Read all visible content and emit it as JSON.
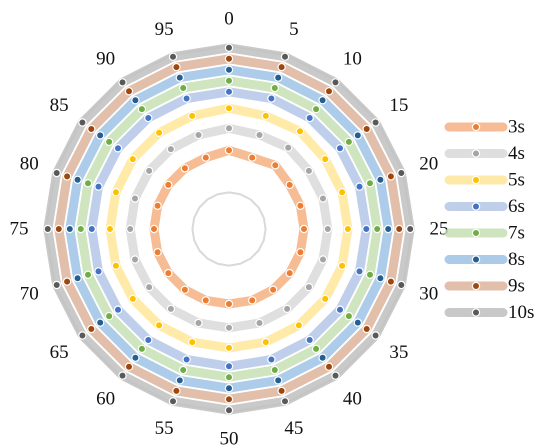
{
  "chart_data": {
    "type": "radar",
    "title": "",
    "categories": [
      "0",
      "5",
      "10",
      "15",
      "20",
      "25",
      "30",
      "35",
      "40",
      "45",
      "50",
      "55",
      "60",
      "65",
      "70",
      "75",
      "80",
      "85",
      "90",
      "95"
    ],
    "rlim": [
      0,
      10
    ],
    "grid": true,
    "grid_rings": [
      2
    ],
    "legend_position": "right",
    "series": [
      {
        "name": "3s",
        "values": [
          4.3,
          4.1,
          4.3,
          4.1,
          4.1,
          4.1,
          4.1,
          4.1,
          4.1,
          4.1,
          4.1,
          4.1,
          4.1,
          4.1,
          4.1,
          4.1,
          4.1,
          4.1,
          4.1,
          4.1
        ],
        "color": "#f4b183",
        "marker": "#ed7d31"
      },
      {
        "name": "4s",
        "values": [
          5.5,
          5.4,
          5.5,
          5.4,
          5.4,
          5.4,
          5.4,
          5.4,
          5.4,
          5.4,
          5.4,
          5.4,
          5.4,
          5.4,
          5.4,
          5.4,
          5.4,
          5.4,
          5.4,
          5.4
        ],
        "color": "#d9d9d9",
        "marker": "#a5a5a5"
      },
      {
        "name": "5s",
        "values": [
          6.6,
          6.5,
          6.6,
          6.5,
          6.5,
          6.5,
          6.5,
          6.5,
          6.5,
          6.5,
          6.5,
          6.5,
          6.5,
          6.5,
          6.5,
          6.5,
          6.5,
          6.5,
          6.5,
          6.5
        ],
        "color": "#ffe699",
        "marker": "#ffc000"
      },
      {
        "name": "6s",
        "values": [
          7.5,
          7.5,
          7.5,
          7.5,
          7.5,
          7.5,
          7.5,
          7.5,
          7.5,
          7.5,
          7.5,
          7.5,
          7.5,
          7.5,
          7.5,
          7.5,
          7.5,
          7.5,
          7.5,
          7.5
        ],
        "color": "#b4c7e7",
        "marker": "#4472c4"
      },
      {
        "name": "7s",
        "values": [
          8.1,
          8.1,
          8.1,
          8.1,
          8.1,
          8.1,
          8.1,
          8.1,
          8.1,
          8.1,
          8.1,
          8.1,
          8.1,
          8.1,
          8.1,
          8.1,
          8.1,
          8.1,
          8.1,
          8.1
        ],
        "color": "#c5e0b4",
        "marker": "#70ad47"
      },
      {
        "name": "8s",
        "values": [
          8.7,
          8.7,
          8.7,
          8.7,
          8.7,
          8.7,
          8.7,
          8.7,
          8.7,
          8.7,
          8.7,
          8.7,
          8.7,
          8.7,
          8.7,
          8.7,
          8.7,
          8.7,
          8.7,
          8.7
        ],
        "color": "#9dc3e6",
        "marker": "#255e91"
      },
      {
        "name": "9s",
        "values": [
          9.3,
          9.3,
          9.3,
          9.3,
          9.3,
          9.3,
          9.3,
          9.3,
          9.3,
          9.3,
          9.3,
          9.3,
          9.3,
          9.3,
          9.3,
          9.3,
          9.3,
          9.3,
          9.3,
          9.3
        ],
        "color": "#dcb49c",
        "marker": "#9e480e"
      },
      {
        "name": "10s",
        "values": [
          9.9,
          9.9,
          9.9,
          9.9,
          9.9,
          9.9,
          9.9,
          9.9,
          9.9,
          9.9,
          9.9,
          9.9,
          9.9,
          9.9,
          9.9,
          9.9,
          9.9,
          9.9,
          9.9,
          9.9
        ],
        "color": "#bfbfbf",
        "marker": "#595959"
      }
    ]
  }
}
